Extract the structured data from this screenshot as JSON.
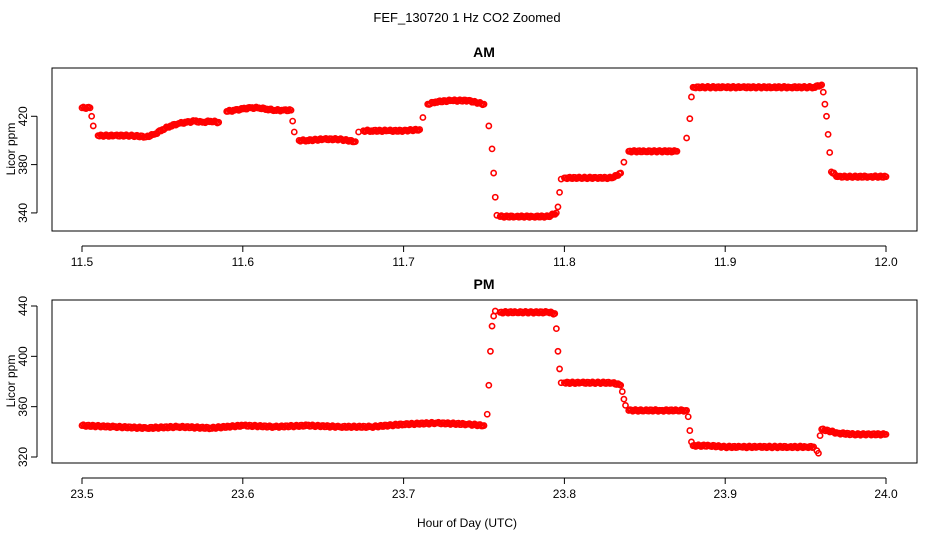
{
  "figure": {
    "title": "FEF_130720  1 Hz CO2 Zoomed",
    "xlabel": "Hour of Day (UTC)"
  },
  "colors": {
    "points": "#ff0000",
    "axes": "#000000",
    "background": "#ffffff"
  },
  "chart_data": [
    {
      "type": "scatter",
      "title": "AM",
      "xlabel": "",
      "ylabel": "Licor ppm",
      "xlim": [
        11.5,
        12.0
      ],
      "ylim": [
        330,
        455
      ],
      "xticks": [
        "11.5",
        "11.6",
        "11.7",
        "11.8",
        "11.9",
        "12.0"
      ],
      "xtick_values": [
        11.5,
        11.6,
        11.7,
        11.8,
        11.9,
        12.0
      ],
      "yticks": [
        "340",
        "380",
        "420"
      ],
      "ytick_values": [
        340,
        380,
        420
      ],
      "grid": false,
      "series": [
        {
          "marker": "open-circle",
          "x": [
            11.5,
            11.505,
            11.506,
            11.507,
            11.51,
            11.52,
            11.53,
            11.54,
            11.545,
            11.55,
            11.555,
            11.56,
            11.565,
            11.57,
            11.575,
            11.58,
            11.585,
            11.59,
            11.595,
            11.6,
            11.605,
            11.61,
            11.615,
            11.62,
            11.625,
            11.63,
            11.631,
            11.632,
            11.635,
            11.64,
            11.65,
            11.66,
            11.67,
            11.672,
            11.675,
            11.68,
            11.69,
            11.7,
            11.71,
            11.712,
            11.715,
            11.72,
            11.73,
            11.74,
            11.75,
            11.753,
            11.755,
            11.756,
            11.757,
            11.758,
            11.76,
            11.77,
            11.78,
            11.79,
            11.795,
            11.796,
            11.797,
            11.798,
            11.8,
            11.81,
            11.82,
            11.83,
            11.835,
            11.837,
            11.84,
            11.85,
            11.86,
            11.87,
            11.876,
            11.878,
            11.879,
            11.88,
            11.89,
            11.9,
            11.91,
            11.92,
            11.93,
            11.94,
            11.95,
            11.955,
            11.96,
            11.961,
            11.962,
            11.963,
            11.964,
            11.965,
            11.966,
            11.97,
            11.98,
            11.99,
            12.0
          ],
          "y": [
            427,
            427,
            420,
            412,
            404,
            404,
            404,
            403,
            405,
            409,
            412,
            414,
            415,
            416,
            415,
            416,
            415,
            424,
            425,
            426,
            427,
            427,
            426,
            425,
            425,
            425,
            416,
            407,
            400,
            400,
            401,
            401,
            399,
            407,
            408,
            408,
            408,
            408,
            409,
            419,
            430,
            432,
            433,
            433,
            430,
            412,
            393,
            373,
            353,
            338,
            337,
            337,
            337,
            337,
            340,
            345,
            357,
            368,
            369,
            369,
            369,
            369,
            373,
            382,
            391,
            391,
            391,
            391,
            402,
            418,
            436,
            444,
            444,
            444,
            444,
            444,
            444,
            444,
            444,
            444,
            446,
            440,
            430,
            420,
            405,
            390,
            374,
            370,
            370,
            370,
            370
          ]
        }
      ]
    },
    {
      "type": "scatter",
      "title": "PM",
      "xlabel": "",
      "ylabel": "Licor ppm",
      "xlim": [
        23.5,
        24.0
      ],
      "ylim": [
        320,
        440
      ],
      "xticks": [
        "23.5",
        "23.6",
        "23.7",
        "23.8",
        "23.9",
        "24.0"
      ],
      "xtick_values": [
        23.5,
        23.6,
        23.7,
        23.8,
        23.9,
        24.0
      ],
      "yticks": [
        "320",
        "360",
        "400",
        "440"
      ],
      "ytick_values": [
        320,
        360,
        400,
        440
      ],
      "grid": false,
      "series": [
        {
          "marker": "open-circle",
          "x": [
            23.5,
            23.52,
            23.54,
            23.56,
            23.58,
            23.6,
            23.62,
            23.64,
            23.66,
            23.68,
            23.7,
            23.72,
            23.74,
            23.75,
            23.752,
            23.753,
            23.754,
            23.755,
            23.756,
            23.757,
            23.76,
            23.77,
            23.78,
            23.79,
            23.794,
            23.795,
            23.796,
            23.797,
            23.798,
            23.8,
            23.81,
            23.82,
            23.83,
            23.835,
            23.836,
            23.837,
            23.838,
            23.84,
            23.85,
            23.86,
            23.87,
            23.876,
            23.877,
            23.878,
            23.879,
            23.88,
            23.89,
            23.9,
            23.91,
            23.92,
            23.93,
            23.94,
            23.95,
            23.955,
            23.957,
            23.958,
            23.959,
            23.96,
            23.97,
            23.98,
            23.99,
            24.0
          ],
          "y": [
            345,
            344,
            343,
            344,
            343,
            345,
            344,
            345,
            344,
            344,
            346,
            347,
            346,
            345,
            354,
            377,
            404,
            424,
            432,
            436,
            435,
            435,
            435,
            435,
            434,
            422,
            404,
            390,
            379,
            379,
            379,
            379,
            379,
            377,
            372,
            366,
            361,
            357,
            357,
            357,
            357,
            357,
            352,
            341,
            332,
            329,
            329,
            328,
            328,
            328,
            328,
            328,
            328,
            328,
            325,
            323,
            337,
            342,
            339,
            338,
            338,
            338
          ]
        }
      ]
    }
  ]
}
